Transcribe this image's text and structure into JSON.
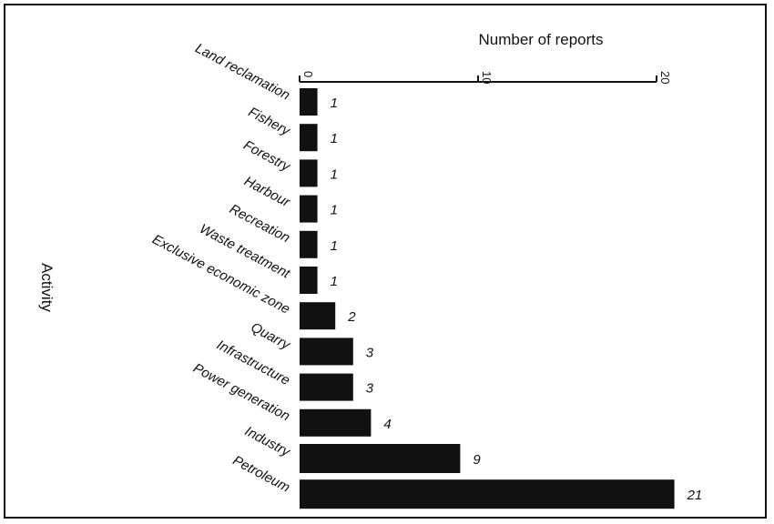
{
  "chart_data": {
    "type": "bar",
    "orientation": "horizontal",
    "xlabel": "Number of reports",
    "ylabel": "Activity",
    "xlim": [
      0,
      20
    ],
    "xticks": [
      0,
      10,
      20
    ],
    "grid": false,
    "categories": [
      "Land reclamation",
      "Fishery",
      "Forestry",
      "Harbour",
      "Recreation",
      "Waste treatment",
      "Exclusive economic zone",
      "Quarry",
      "Infrastructure",
      "Power generation",
      "Industry",
      "Petroleum"
    ],
    "values": [
      1,
      1,
      1,
      1,
      1,
      1,
      2,
      3,
      3,
      4,
      9,
      21
    ],
    "colors": {
      "bar": "#111111",
      "axis": "#111111"
    }
  }
}
